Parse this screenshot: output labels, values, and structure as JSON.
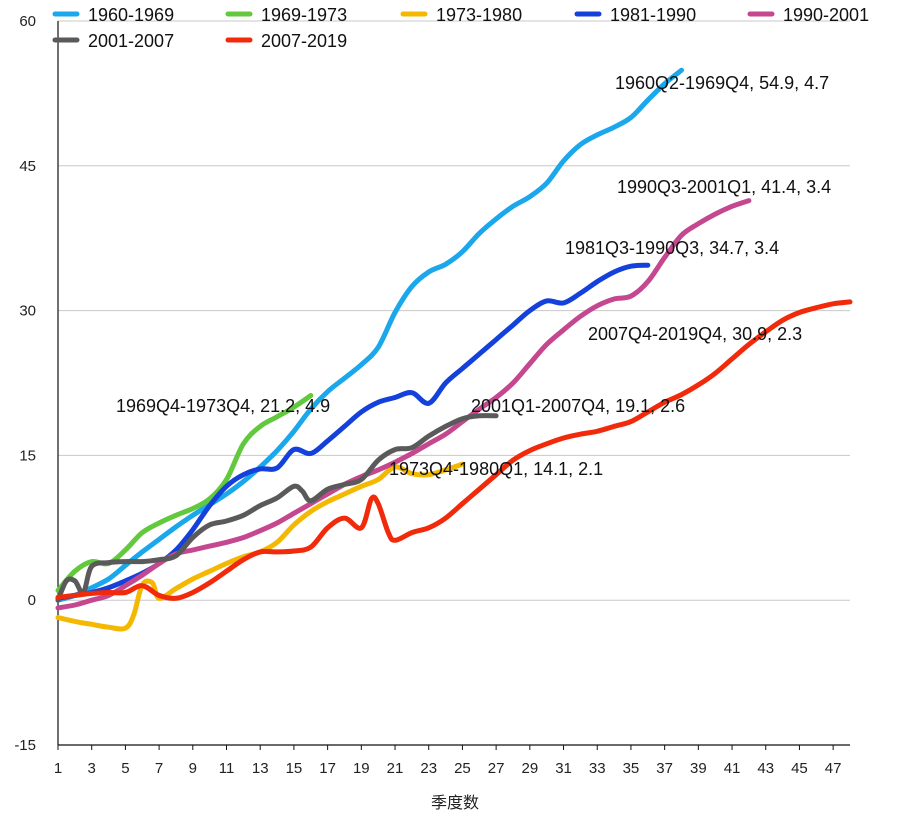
{
  "chart_data": {
    "type": "line",
    "title": "",
    "xlabel": "季度数",
    "ylabel": "",
    "xlim": [
      1,
      48
    ],
    "ylim": [
      -15,
      60
    ],
    "y_ticks": [
      -15,
      0,
      15,
      30,
      45,
      60
    ],
    "x_ticks": [
      1,
      3,
      5,
      7,
      9,
      11,
      13,
      15,
      17,
      19,
      21,
      23,
      25,
      27,
      29,
      31,
      33,
      35,
      37,
      39,
      41,
      43,
      45,
      47
    ],
    "grid": "horizontal",
    "legend_position": "top",
    "series": [
      {
        "name": "1960-1969",
        "color": "#1aa7ec",
        "x": [
          1,
          2,
          3,
          4,
          5,
          6,
          7,
          8,
          9,
          10,
          11,
          12,
          13,
          14,
          15,
          16,
          17,
          18,
          19,
          20,
          21,
          22,
          23,
          24,
          25,
          26,
          27,
          28,
          29,
          30,
          31,
          32,
          33,
          34,
          35,
          36,
          37,
          38
        ],
        "values": [
          0,
          0.5,
          1.3,
          2.2,
          3.6,
          5,
          6.3,
          7.6,
          8.8,
          9.9,
          11,
          12.3,
          13.8,
          15.5,
          17.5,
          19.8,
          21.6,
          23,
          24.4,
          26.2,
          29.8,
          32.5,
          34,
          34.8,
          36.1,
          38,
          39.5,
          40.8,
          41.8,
          43.2,
          45.5,
          47.2,
          48.2,
          49,
          50,
          51.8,
          53.5,
          54.9
        ]
      },
      {
        "name": "1969-1973",
        "color": "#62c83d",
        "x": [
          1,
          2,
          3,
          4,
          5,
          6,
          7,
          8,
          9,
          10,
          11,
          12,
          13,
          14,
          15,
          16
        ],
        "values": [
          1,
          3,
          4,
          3.8,
          5.2,
          7,
          8,
          8.8,
          9.5,
          10.5,
          12.5,
          16.2,
          18,
          19,
          20,
          21.2
        ]
      },
      {
        "name": "1973-1980",
        "color": "#f5b800",
        "x": [
          1,
          2,
          3,
          4,
          5,
          5.5,
          6,
          6.6,
          7,
          8,
          9,
          10,
          11,
          12,
          13,
          14,
          15,
          16,
          17,
          18,
          19,
          20,
          21,
          22,
          23,
          24,
          25
        ],
        "values": [
          -1.8,
          -2.2,
          -2.5,
          -2.8,
          -2.9,
          -1.5,
          1.6,
          1.8,
          0.2,
          1.2,
          2.2,
          3,
          3.8,
          4.5,
          5,
          6,
          7.8,
          9.2,
          10.2,
          11,
          11.8,
          12.5,
          13.8,
          13.1,
          13,
          13.5,
          14.1
        ]
      },
      {
        "name": "1981-1990",
        "color": "#1440dc",
        "x": [
          1,
          2,
          3,
          4,
          5,
          6,
          7,
          8,
          9,
          10,
          11,
          12,
          13,
          14,
          15,
          16,
          17,
          18,
          19,
          20,
          21,
          22,
          23,
          24,
          25,
          26,
          27,
          28,
          29,
          30,
          31,
          32,
          33,
          34,
          35,
          36
        ],
        "values": [
          0.2,
          0.5,
          0.8,
          1.3,
          2,
          2.8,
          3.8,
          5.2,
          7.3,
          9.8,
          11.8,
          13,
          13.6,
          13.7,
          15.6,
          15.2,
          16.5,
          18,
          19.5,
          20.5,
          21,
          21.5,
          20.4,
          22.5,
          24,
          25.5,
          27,
          28.5,
          30,
          31,
          30.8,
          31.8,
          33,
          34,
          34.6,
          34.7
        ]
      },
      {
        "name": "1990-2001",
        "color": "#c4478f",
        "x": [
          1,
          2,
          3,
          4,
          5,
          6,
          7,
          8,
          9,
          10,
          11,
          12,
          13,
          14,
          15,
          16,
          17,
          18,
          19,
          20,
          21,
          22,
          23,
          24,
          25,
          26,
          27,
          28,
          29,
          30,
          31,
          32,
          33,
          34,
          35,
          36,
          37,
          38,
          39,
          40,
          41,
          42
        ],
        "values": [
          -0.8,
          -0.5,
          0,
          0.5,
          1.5,
          2.6,
          3.8,
          4.8,
          5.2,
          5.6,
          6,
          6.5,
          7.2,
          8,
          9,
          10,
          11,
          12,
          12.8,
          13.5,
          14.3,
          15.2,
          16.2,
          17.2,
          18.5,
          19.8,
          21,
          22.5,
          24.5,
          26.5,
          28,
          29.4,
          30.5,
          31.2,
          31.5,
          33,
          35.5,
          37.8,
          39,
          40,
          40.8,
          41.4
        ]
      },
      {
        "name": "2001-2007",
        "color": "#5a5a5a",
        "x": [
          1,
          1.5,
          2,
          2.5,
          3,
          4,
          5,
          6,
          7,
          8,
          9,
          10,
          11,
          12,
          13,
          14,
          15,
          15.5,
          16,
          17,
          18,
          19,
          20,
          21,
          22,
          23,
          24,
          25,
          26,
          27
        ],
        "values": [
          0,
          2,
          2,
          0.8,
          3.5,
          3.9,
          4,
          4,
          4.2,
          4.6,
          6.5,
          7.8,
          8.2,
          8.8,
          9.8,
          10.6,
          11.8,
          11.3,
          10.3,
          11.5,
          12,
          12.5,
          14.5,
          15.6,
          15.8,
          17,
          18,
          18.8,
          19.1,
          19.1
        ]
      },
      {
        "name": "2007-2019",
        "color": "#f02a0a",
        "x": [
          1,
          2,
          3,
          4,
          5,
          6,
          7,
          8,
          9,
          10,
          11,
          12,
          13,
          14,
          15,
          16,
          17,
          18,
          19,
          19.6,
          20,
          20.6,
          21,
          22,
          23,
          24,
          25,
          26,
          27,
          28,
          29,
          30,
          31,
          32,
          33,
          34,
          35,
          36,
          37,
          38,
          39,
          40,
          41,
          42,
          43,
          44,
          45,
          46,
          47,
          48
        ],
        "values": [
          0.3,
          0.5,
          0.7,
          0.8,
          0.8,
          1.5,
          0.5,
          0.2,
          0.8,
          1.8,
          3,
          4.2,
          5,
          5,
          5.1,
          5.5,
          7.5,
          8.5,
          7.5,
          10.5,
          10,
          7,
          6.2,
          7,
          7.5,
          8.5,
          10,
          11.5,
          13,
          14.5,
          15.5,
          16.2,
          16.8,
          17.2,
          17.5,
          18,
          18.5,
          19.5,
          20.5,
          21.3,
          22.3,
          23.5,
          25,
          26.5,
          27.8,
          29,
          29.8,
          30.3,
          30.7,
          30.9
        ]
      }
    ],
    "annotations": [
      {
        "text": "1960Q2-1969Q4, 54.9, 4.7",
        "x": 38,
        "y": 54.9
      },
      {
        "text": "1990Q3-2001Q1, 41.4, 3.4",
        "x": 42,
        "y": 41.4
      },
      {
        "text": "1981Q3-1990Q3, 34.7, 3.4",
        "x": 36,
        "y": 34.7
      },
      {
        "text": "2007Q4-2019Q4, 30.9, 2.3",
        "x": 48,
        "y": 30.9
      },
      {
        "text": "1969Q4-1973Q4, 21.2, 4.9",
        "x": 16,
        "y": 21.2
      },
      {
        "text": "2001Q1-2007Q4, 19.1, 2.6",
        "x": 27,
        "y": 19.1
      },
      {
        "text": "1973Q4-1980Q1, 14.1, 2.1",
        "x": 25,
        "y": 14.1
      }
    ]
  }
}
